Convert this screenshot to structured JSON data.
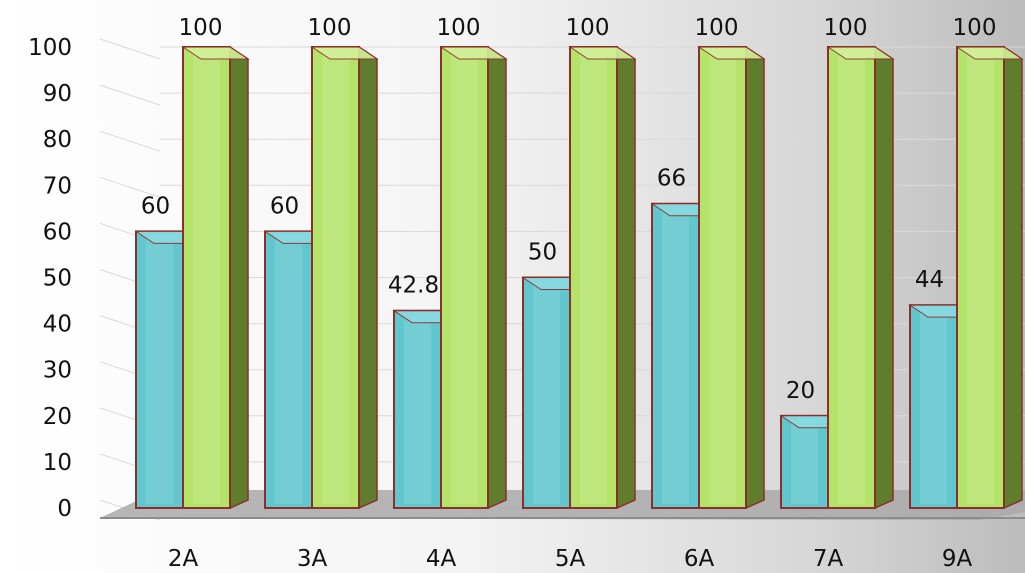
{
  "chart_data": {
    "type": "bar",
    "title": "",
    "xlabel": "",
    "ylabel": "",
    "categories": [
      "2A",
      "3A",
      "4A",
      "5A",
      "6A",
      "7A",
      "9A"
    ],
    "series": [
      {
        "values": [
          60,
          60,
          42.8,
          50,
          66,
          20,
          44
        ],
        "labels": [
          "60",
          "60",
          "42.8",
          "50",
          "66",
          "20",
          "44"
        ]
      },
      {
        "values": [
          100,
          100,
          100,
          100,
          100,
          100,
          100
        ],
        "labels": [
          "100",
          "100",
          "100",
          "100",
          "100",
          "100",
          "100"
        ]
      }
    ],
    "ylim": [
      0,
      100
    ],
    "yticks": [
      "0",
      "10",
      "20",
      "30",
      "40",
      "50",
      "60",
      "70",
      "80",
      "90",
      "100"
    ],
    "grid": true,
    "legend": "none",
    "three_d": true,
    "colors": {
      "series1_front": "#62c6cf",
      "series1_side": "#2f6e78",
      "series1_top": "#8adbe2",
      "series2_front": "#b4e36a",
      "series2_side": "#5f7d2c",
      "series2_top": "#d4f09a",
      "bar_outline": "#8a2f2a",
      "floor": "#a9a9a9",
      "gridline": "#d9d9d9"
    }
  }
}
